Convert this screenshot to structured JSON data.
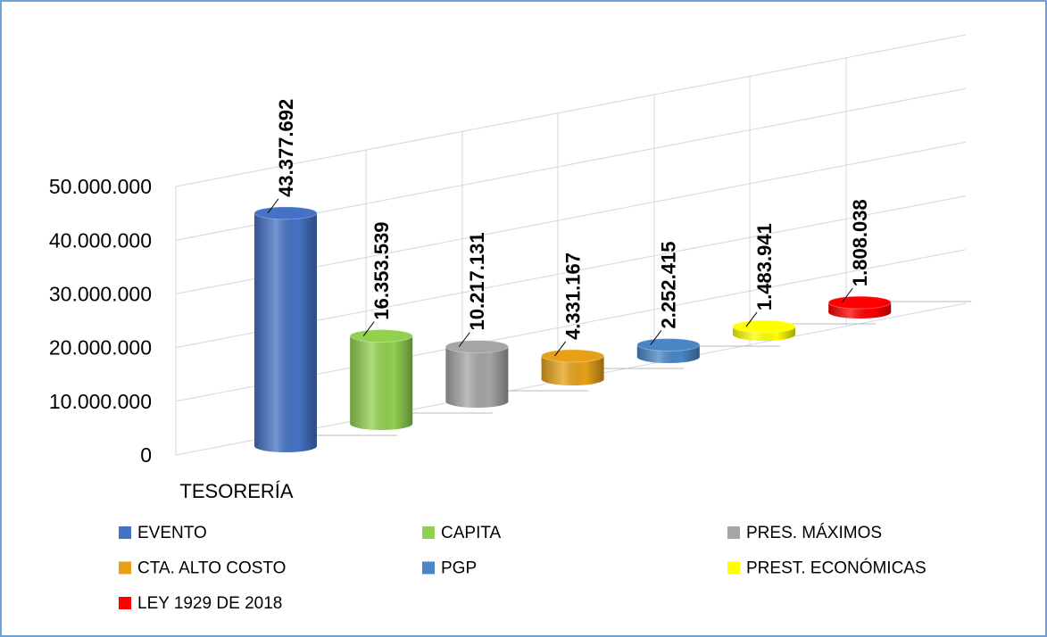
{
  "chart_data": {
    "type": "bar3d",
    "categories": [
      "TESORERÍA"
    ],
    "ylim": [
      0,
      50000000
    ],
    "yticks": [
      0,
      {
        "value": 10000000,
        "label": "10.000.000"
      },
      {
        "value": 20000000,
        "label": "20.000.000"
      },
      {
        "value": 30000000,
        "label": "30.000.000"
      },
      {
        "value": 40000000,
        "label": "40.000.000"
      },
      {
        "value": 50000000,
        "label": "50.000.000"
      }
    ],
    "grid": true,
    "legend": "bottom",
    "series": [
      {
        "name": "EVENTO",
        "color": "#4472c4",
        "values": [
          43377692
        ],
        "value_labels": [
          "43.377.692"
        ]
      },
      {
        "name": "CAPITA",
        "color": "#92d050",
        "values": [
          16353539
        ],
        "value_labels": [
          "16.353.539"
        ]
      },
      {
        "name": "PRES. MÁXIMOS",
        "color": "#a5a5a5",
        "values": [
          10217131
        ],
        "value_labels": [
          "10.217.131"
        ]
      },
      {
        "name": "CTA. ALTO COSTO",
        "color": "#e6a118",
        "values": [
          4331167
        ],
        "value_labels": [
          "4.331.167"
        ]
      },
      {
        "name": "PGP",
        "color": "#4a86c5",
        "values": [
          2252415
        ],
        "value_labels": [
          "2.252.415"
        ]
      },
      {
        "name": "PREST. ECONÓMICAS",
        "color": "#ffff00",
        "values": [
          1483941
        ],
        "value_labels": [
          "1.483.941"
        ]
      },
      {
        "name": "LEY 1929 DE 2018",
        "color": "#ff0000",
        "values": [
          1808038
        ],
        "value_labels": [
          "1.808.038"
        ]
      }
    ]
  }
}
